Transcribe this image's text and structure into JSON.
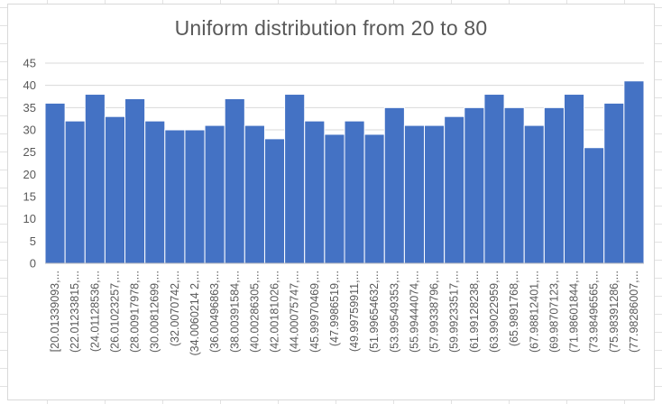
{
  "chart_data": {
    "type": "bar",
    "title": "Uniform distribution from 20 to 80",
    "xlabel": "",
    "ylabel": "",
    "ylim": [
      0,
      45
    ],
    "y_ticks": [
      0,
      5,
      10,
      15,
      20,
      25,
      30,
      35,
      40,
      45
    ],
    "grid": true,
    "legend": "none",
    "bar_color": "#4472c4",
    "categories": [
      "[20.01339093,...",
      "(22.01233815,...",
      "(24.01128536,...",
      "(26.01023257,...",
      "(28.00917978,...",
      "(30.00812699,...",
      "(32.0070742,...",
      "(34.0060214 2,...",
      "(36.00496863,...",
      "(38.00391584,...",
      "(40.00286305,...",
      "(42.00181026,...",
      "(44.00075747,...",
      "(45.99970469,...",
      "(47.9986519,...",
      "(49.99759911,...",
      "(51.99654632,...",
      "(53.99549353,...",
      "(55.99444074,...",
      "(57.99338796,...",
      "(59.99233517,...",
      "(61.99128238,...",
      "(63.99022959,...",
      "(65.9891768,...",
      "(67.98812401,...",
      "(69.98707123,...",
      "(71.98601844,...",
      "(73.98496565,...",
      "(75.98391286,...",
      "(77.98286007,..."
    ],
    "values": [
      36,
      32,
      38,
      33,
      37,
      32,
      30,
      30,
      31,
      37,
      31,
      28,
      38,
      32,
      29,
      32,
      29,
      35,
      31,
      31,
      33,
      35,
      38,
      35,
      31,
      35,
      38,
      26,
      36,
      41
    ]
  }
}
